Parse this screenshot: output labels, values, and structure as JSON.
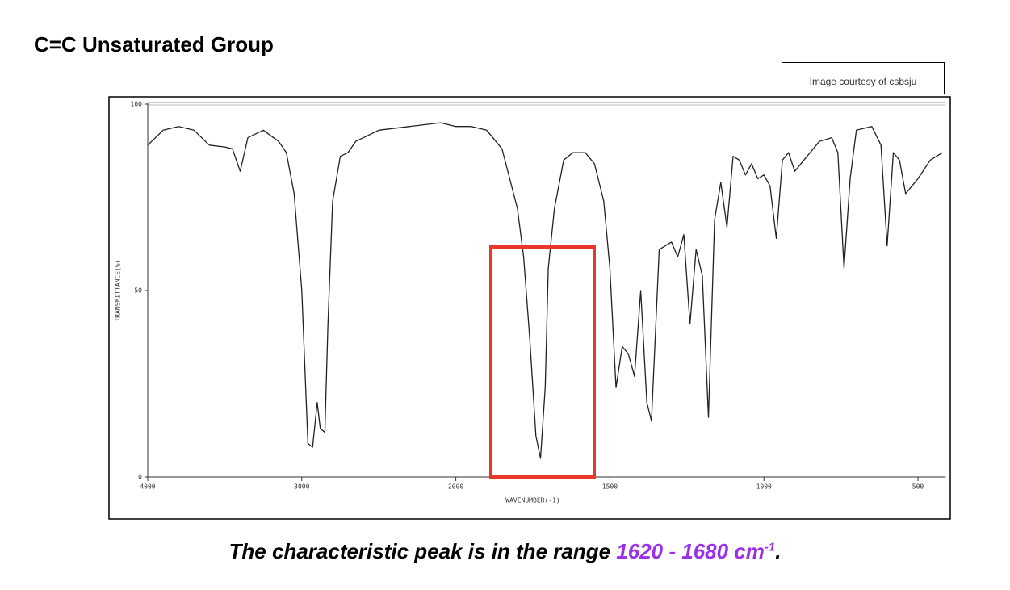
{
  "chart_data": {
    "type": "line",
    "title": "C=C Unsaturated Group",
    "x_label": "WAVENUMBER(-1)",
    "y_label": "TRANSMITTANCE(%)",
    "xlim": [
      4000,
      410
    ],
    "xticks": [
      4000,
      3000,
      2000,
      1500,
      1000,
      500
    ],
    "ylim": [
      0,
      100
    ],
    "yticks": [
      0,
      50,
      100
    ],
    "series": [
      {
        "color": "#222222",
        "x": [
          4000,
          3900,
          3800,
          3700,
          3600,
          3500,
          3450,
          3400,
          3350,
          3250,
          3150,
          3100,
          3050,
          3000,
          2960,
          2930,
          2900,
          2880,
          2850,
          2830,
          2800,
          2750,
          2700,
          2650,
          2500,
          2300,
          2100,
          2000,
          1950,
          1900,
          1850,
          1800,
          1780,
          1760,
          1740,
          1725,
          1710,
          1700,
          1680,
          1650,
          1620,
          1580,
          1550,
          1520,
          1500,
          1480,
          1460,
          1440,
          1420,
          1400,
          1380,
          1365,
          1340,
          1300,
          1280,
          1260,
          1240,
          1220,
          1200,
          1180,
          1160,
          1140,
          1120,
          1100,
          1080,
          1060,
          1040,
          1020,
          1000,
          980,
          960,
          940,
          920,
          900,
          860,
          820,
          780,
          760,
          740,
          720,
          700,
          650,
          620,
          600,
          580,
          560,
          540,
          500,
          460,
          420
        ],
        "values": [
          89,
          93,
          94,
          93,
          89,
          88.5,
          88,
          82,
          91,
          93,
          90,
          87,
          76,
          50,
          9,
          8,
          20,
          13,
          12,
          41,
          74,
          86,
          87,
          90,
          93,
          94,
          95,
          94,
          94,
          93,
          88,
          72,
          59,
          37,
          11,
          5,
          24,
          56,
          72,
          85,
          87,
          87,
          84,
          74,
          56,
          24,
          35,
          33,
          27,
          50,
          20,
          15,
          61,
          63,
          59,
          65,
          41,
          61,
          54,
          16,
          69,
          79,
          67,
          86,
          85,
          81,
          84,
          80,
          81,
          78,
          64,
          85,
          87,
          82,
          86,
          90,
          91,
          87,
          56,
          80,
          93,
          94,
          89,
          62,
          87,
          85,
          76,
          80,
          85,
          87
        ]
      }
    ]
  },
  "credit": "Image courtesy of csbsju",
  "caption": {
    "text": "The characteristic peak is in the range",
    "range": "1620 - 1680 cm",
    "superscript": "-1",
    "end": "."
  }
}
